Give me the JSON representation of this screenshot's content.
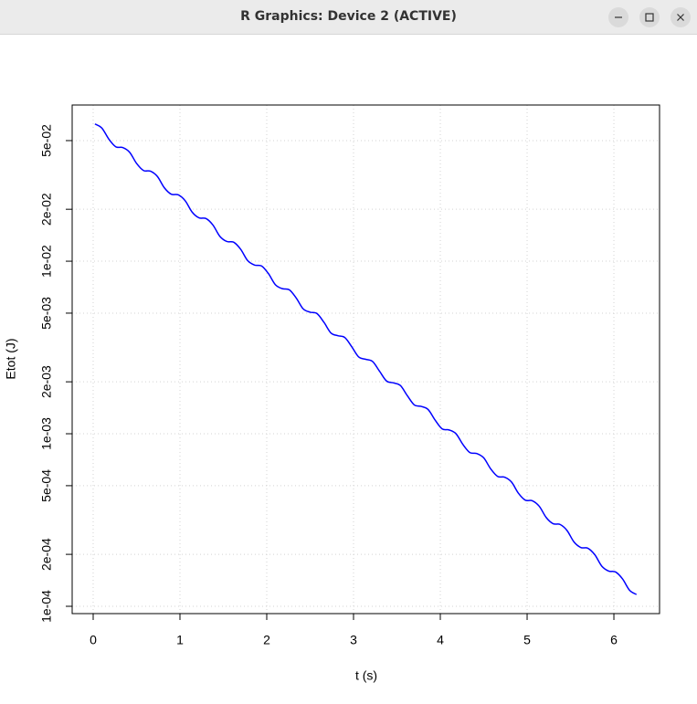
{
  "window": {
    "title": "R Graphics: Device 2 (ACTIVE)"
  },
  "chart_data": {
    "type": "line",
    "x_label": "t (s)",
    "y_label": "Etot (J)",
    "x": [
      0.02,
      0.1,
      0.18,
      0.26,
      0.34,
      0.42,
      0.5,
      0.58,
      0.66,
      0.74,
      0.82,
      0.9,
      0.98,
      1.06,
      1.14,
      1.22,
      1.3,
      1.38,
      1.46,
      1.54,
      1.62,
      1.7,
      1.78,
      1.86,
      1.94,
      2.02,
      2.1,
      2.18,
      2.26,
      2.34,
      2.42,
      2.5,
      2.58,
      2.66,
      2.74,
      2.82,
      2.9,
      2.98,
      3.06,
      3.14,
      3.22,
      3.3,
      3.38,
      3.46,
      3.54,
      3.62,
      3.7,
      3.78,
      3.86,
      3.94,
      4.02,
      4.1,
      4.18,
      4.26,
      4.34,
      4.42,
      4.5,
      4.58,
      4.66,
      4.74,
      4.82,
      4.9,
      4.98,
      5.06,
      5.14,
      5.22,
      5.3,
      5.38,
      5.46,
      5.54,
      5.62,
      5.7,
      5.78,
      5.86,
      5.94,
      6.02,
      6.1,
      6.18,
      6.26
    ],
    "series": [
      {
        "color": "#0000ff",
        "values": [
          0.06245,
          0.05912,
          0.05104,
          0.04606,
          0.04558,
          0.04282,
          0.03688,
          0.03355,
          0.03326,
          0.03099,
          0.02665,
          0.02445,
          0.02426,
          0.02242,
          0.01927,
          0.01783,
          0.01768,
          0.01621,
          0.01393,
          0.01301,
          0.01288,
          0.01172,
          0.01008,
          0.009497,
          0.009383,
          0.008468,
          0.007303,
          0.006933,
          0.006828,
          0.006117,
          0.005292,
          0.005064,
          0.004966,
          0.004417,
          0.003837,
          0.003698,
          0.00361,
          0.003189,
          0.002785,
          0.002701,
          0.002622,
          0.002302,
          0.002022,
          0.001972,
          0.001903,
          0.001662,
          0.001469,
          0.00144,
          0.001381,
          0.0012,
          0.001068,
          0.001052,
          0.001001,
          0.000867,
          0.000778,
          0.000768,
          0.000725,
          0.000626,
          0.000566,
          0.00056,
          0.000525,
          0.000452,
          0.000412,
          0.000409,
          0.00038,
          0.000327,
          0.000301,
          0.000298,
          0.000275,
          0.000236,
          0.000219,
          0.000217,
          0.000199,
          0.000171,
          0.00016,
          0.000158,
          0.000144,
          0.000124,
          0.000117
        ]
      }
    ],
    "xlim": [
      -0.242,
      6.526
    ],
    "xticks": [
      0,
      1,
      2,
      3,
      4,
      5,
      6
    ],
    "ylim": [
      9.07e-05,
      0.0804
    ],
    "log_y": true,
    "yticks": [
      {
        "value": 0.0001,
        "label": "1e-04"
      },
      {
        "value": 0.0002,
        "label": "2e-04"
      },
      {
        "value": 0.0005,
        "label": "5e-04"
      },
      {
        "value": 0.001,
        "label": "1e-03"
      },
      {
        "value": 0.002,
        "label": "2e-03"
      },
      {
        "value": 0.005,
        "label": "5e-03"
      },
      {
        "value": 0.01,
        "label": "1e-02"
      },
      {
        "value": 0.02,
        "label": "2e-02"
      },
      {
        "value": 0.05,
        "label": "5e-02"
      }
    ],
    "grid": true
  }
}
